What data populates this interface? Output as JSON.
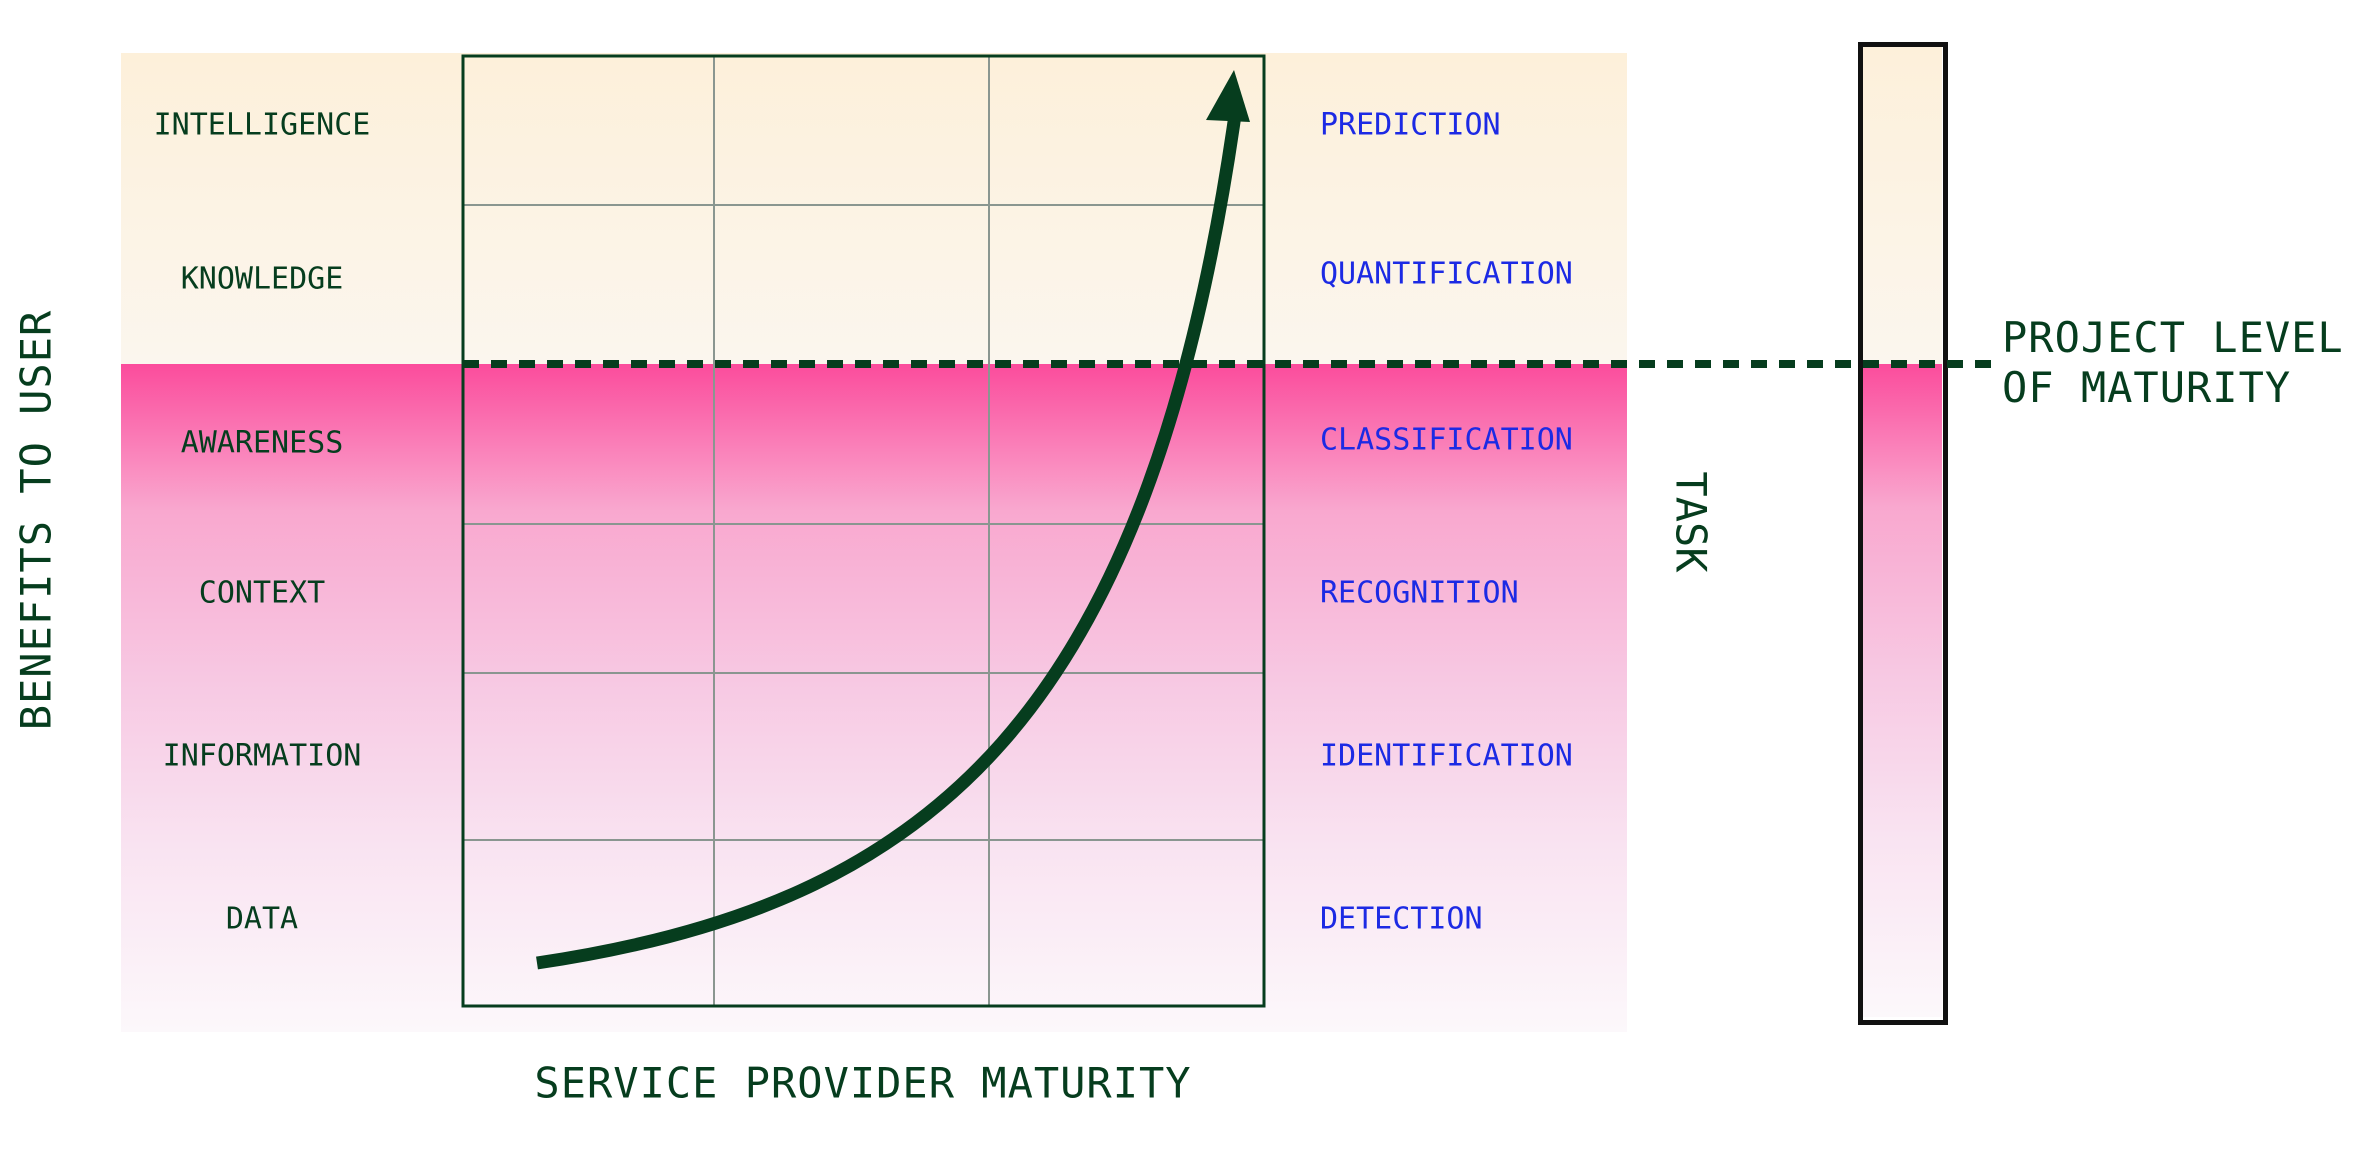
{
  "colors": {
    "dark_green": "#063d1e",
    "task_blue": "#1c2ae4",
    "grid_gray": "#8a9690",
    "hot_pink": "#fb4c9c",
    "cream": "#fdf0da",
    "frame_black": "#111111"
  },
  "y_axis_title": "BENEFITS TO USER",
  "x_axis_title": "SERVICE PROVIDER MATURITY",
  "task_title": "TASK",
  "benefit_levels": [
    "INTELLIGENCE",
    "KNOWLEDGE",
    "AWARENESS",
    "CONTEXT",
    "INFORMATION",
    "DATA"
  ],
  "task_levels": [
    "PREDICTION",
    "QUANTIFICATION",
    "CLASSIFICATION",
    "RECOGNITION",
    "IDENTIFICATION",
    "DETECTION"
  ],
  "project_maturity": {
    "line1": "PROJECT LEVEL",
    "line2": "OF MATURITY",
    "level_index_from_top": 2
  },
  "arrow_icon": "curved-growth-arrow"
}
